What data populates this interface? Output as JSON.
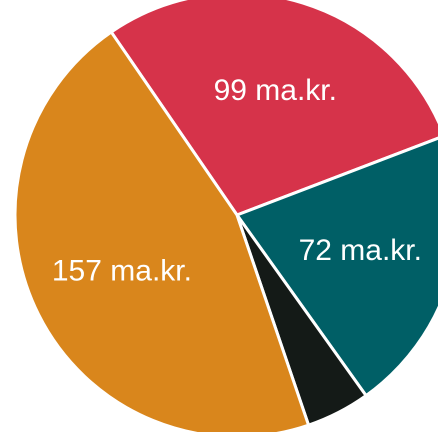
{
  "chart_data": {
    "type": "pie",
    "values": [
      99,
      72,
      16,
      157
    ],
    "value_labels": [
      "99 ma.kr.",
      "72 ma.kr.",
      null,
      "157 ma.kr."
    ],
    "colors": [
      "#d6334a",
      "#005f66",
      "#141a17",
      "#d9861c"
    ]
  }
}
